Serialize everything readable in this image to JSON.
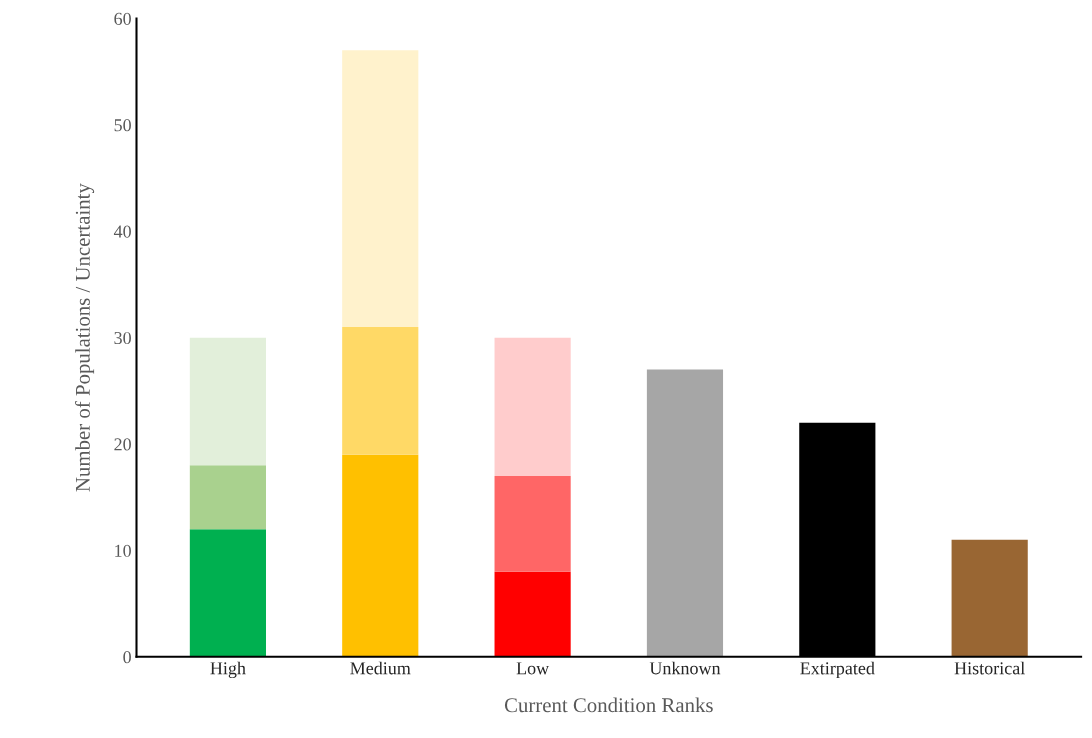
{
  "chart_data": {
    "type": "bar",
    "stacked": true,
    "xlabel": "Current Condition Ranks",
    "ylabel": "Number of Populations / Uncertainty",
    "categories": [
      "High",
      "Medium",
      "Low",
      "Unknown",
      "Extirpated",
      "Historical"
    ],
    "series": [
      {
        "values": [
          12,
          19,
          8,
          27,
          22,
          11
        ],
        "colors": [
          "#00b050",
          "#ffc000",
          "#ff0000",
          "#a6a6a6",
          "#000000",
          "#996633"
        ]
      },
      {
        "values": [
          6,
          12,
          9,
          null,
          null,
          null
        ],
        "colors": [
          "#a9d18e",
          "#ffd966",
          "#ff6666",
          "#a6a6a6",
          "#000000",
          "#996633"
        ]
      },
      {
        "values": [
          12,
          26,
          13,
          null,
          null,
          null
        ],
        "colors": [
          "#e2efda",
          "#fff2cc",
          "#ffcccc",
          "#a6a6a6",
          "#000000",
          "#996633"
        ]
      }
    ],
    "ylim": [
      0,
      60
    ],
    "yticks": [
      0,
      10,
      20,
      30,
      40,
      50,
      60
    ],
    "grid": false,
    "legend": false
  }
}
